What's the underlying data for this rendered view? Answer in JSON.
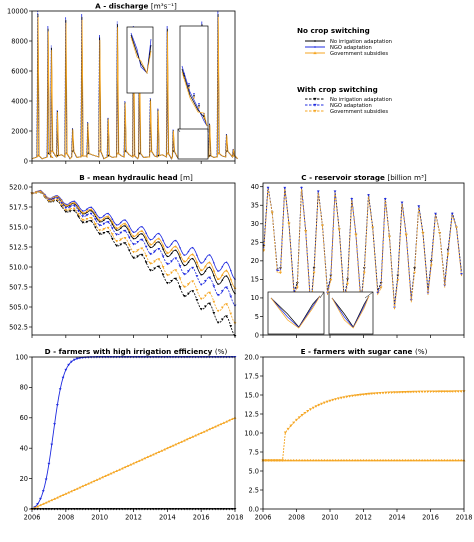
{
  "colors": {
    "no_adaptation": "#000000",
    "ngo_adaptation": "#1f2be0",
    "government_subsidies": "#f5a623"
  },
  "legend_panel": {
    "groups": [
      {
        "title": "No crop switching",
        "entries": [
          {
            "label": "No irrigation adaptation",
            "color": "#000000",
            "line": "solid",
            "marker": "dot"
          },
          {
            "label": "NGO adaptation",
            "color": "#1f2be0",
            "line": "solid",
            "marker": "dot"
          },
          {
            "label": "Government subsidies",
            "color": "#f5a623",
            "line": "solid",
            "marker": "triangle"
          }
        ]
      },
      {
        "title": "With crop switching",
        "entries": [
          {
            "label": "No irrigation adaptation",
            "color": "#000000",
            "line": "dashed",
            "marker": "triangle-down"
          },
          {
            "label": "NGO adaptation",
            "color": "#1f2be0",
            "line": "dashed",
            "marker": "triangle-down"
          },
          {
            "label": "Government subsidies",
            "color": "#f5a623",
            "line": "dashed",
            "marker": "triangle-down"
          }
        ]
      }
    ]
  },
  "chart_data": [
    {
      "id": "A",
      "type": "line",
      "title": "A - discharge",
      "title_unit": "[m³s⁻¹]",
      "x_range": [
        2006,
        2018
      ],
      "ylim": [
        0,
        10000
      ],
      "yticks": [
        0,
        2000,
        4000,
        6000,
        8000,
        10000
      ],
      "xticks": [],
      "grid": false,
      "baseline_value": 150,
      "peaks": [
        {
          "x": 2006.35,
          "y": 10000
        },
        {
          "x": 2006.95,
          "y": 9000
        },
        {
          "x": 2007.15,
          "y": 7700
        },
        {
          "x": 2007.5,
          "y": 3400
        },
        {
          "x": 2008.0,
          "y": 9600
        },
        {
          "x": 2008.4,
          "y": 2200
        },
        {
          "x": 2008.95,
          "y": 9800
        },
        {
          "x": 2009.3,
          "y": 2600
        },
        {
          "x": 2010.0,
          "y": 8400
        },
        {
          "x": 2010.5,
          "y": 2900
        },
        {
          "x": 2011.05,
          "y": 9300
        },
        {
          "x": 2011.5,
          "y": 4000
        },
        {
          "x": 2012.0,
          "y": 9000
        },
        {
          "x": 2012.35,
          "y": 7400
        },
        {
          "x": 2013.0,
          "y": 4200
        },
        {
          "x": 2013.45,
          "y": 3500
        },
        {
          "x": 2014.0,
          "y": 9000
        },
        {
          "x": 2014.35,
          "y": 2100
        },
        {
          "x": 2015.0,
          "y": 6800
        },
        {
          "x": 2015.6,
          "y": 2600
        },
        {
          "x": 2016.05,
          "y": 9300
        },
        {
          "x": 2016.5,
          "y": 2500
        },
        {
          "x": 2017.0,
          "y": 10000
        },
        {
          "x": 2017.5,
          "y": 1800
        },
        {
          "x": 2017.9,
          "y": 800
        }
      ]
    },
    {
      "id": "B",
      "type": "line",
      "title": "B - mean hydraulic head",
      "title_unit": "[m]",
      "x_range": [
        2006,
        2018
      ],
      "ylim": [
        501.5,
        520.5
      ],
      "yticks": [
        502.5,
        505.0,
        507.5,
        510.0,
        512.5,
        515.0,
        517.5,
        520.0
      ],
      "xticks": [],
      "grid": false,
      "series": [
        {
          "name": "No irrigation adaptation",
          "scenario": "no_switch",
          "color": "#000000",
          "dashed": false,
          "start": 519.5,
          "end": 507.5
        },
        {
          "name": "NGO adaptation",
          "scenario": "no_switch",
          "color": "#1f2be0",
          "dashed": false,
          "start": 519.5,
          "end": 509.3
        },
        {
          "name": "Government subsidies",
          "scenario": "no_switch",
          "color": "#f5a623",
          "dashed": false,
          "start": 519.5,
          "end": 508.2
        },
        {
          "name": "No irrigation adaptation",
          "scenario": "switch",
          "color": "#000000",
          "dashed": true,
          "start": 519.5,
          "end": 502.2
        },
        {
          "name": "NGO adaptation",
          "scenario": "switch",
          "color": "#1f2be0",
          "dashed": true,
          "start": 519.5,
          "end": 506.0
        },
        {
          "name": "Government subsidies",
          "scenario": "switch",
          "color": "#f5a623",
          "dashed": true,
          "start": 519.5,
          "end": 503.8
        }
      ]
    },
    {
      "id": "C",
      "type": "line",
      "title": "C - reservoir storage",
      "title_unit": "[billion m³]",
      "x_range": [
        2006,
        2018
      ],
      "ylim": [
        0,
        41
      ],
      "yticks": [
        0,
        5,
        10,
        15,
        20,
        25,
        30,
        35,
        40
      ],
      "xticks": [],
      "grid": false,
      "annual_cycle": [
        {
          "year": 2006,
          "max": 40,
          "min": 18
        },
        {
          "year": 2007,
          "max": 40,
          "min": 12
        },
        {
          "year": 2008,
          "max": 40,
          "min": 8
        },
        {
          "year": 2009,
          "max": 39,
          "min": 12
        },
        {
          "year": 2010,
          "max": 39,
          "min": 10
        },
        {
          "year": 2011,
          "max": 37,
          "min": 9
        },
        {
          "year": 2012,
          "max": 38,
          "min": 12
        },
        {
          "year": 2013,
          "max": 37,
          "min": 8
        },
        {
          "year": 2014,
          "max": 36,
          "min": 10
        },
        {
          "year": 2015,
          "max": 35,
          "min": 12
        },
        {
          "year": 2016,
          "max": 33,
          "min": 14
        },
        {
          "year": 2017,
          "max": 33,
          "min": 17
        }
      ]
    },
    {
      "id": "D",
      "type": "line",
      "title": "D - farmers with high irrigation efficiency",
      "title_unit": "(%)",
      "x_range": [
        2006,
        2018
      ],
      "ylim": [
        0,
        100
      ],
      "yticks": [
        0,
        20,
        40,
        60,
        80,
        100
      ],
      "xticks": [
        "2006",
        "2008",
        "2010",
        "2012",
        "2014",
        "2016",
        "2018"
      ],
      "grid": false,
      "series": [
        {
          "name": "NGO adaptation",
          "color": "#1f2be0",
          "shape": "logistic",
          "mid": 2007.25,
          "rate": 3.2,
          "max": 100
        },
        {
          "name": "Government subsidies",
          "color": "#f5a623",
          "shape": "linear",
          "start": 0,
          "end": 60
        },
        {
          "name": "No irrigation adaptation",
          "color": "#000000",
          "shape": "constant",
          "value": 0
        }
      ]
    },
    {
      "id": "E",
      "type": "line",
      "title": "E - farmers with sugar cane",
      "title_unit": "(%)",
      "x_range": [
        2006,
        2018
      ],
      "ylim": [
        0,
        20
      ],
      "yticks": [
        0.0,
        2.5,
        5.0,
        7.5,
        10.0,
        12.5,
        15.0,
        17.5,
        20.0
      ],
      "xticks": [
        "2006",
        "2008",
        "2010",
        "2012",
        "2014",
        "2016",
        "2018"
      ],
      "grid": false,
      "series": [
        {
          "name": "No crop switching",
          "color": "#f5a623",
          "shape": "constant",
          "value": 6.4
        },
        {
          "name": "With crop switching",
          "color": "#f5a623",
          "shape": "saturating",
          "start": 6.4,
          "max": 15.5,
          "rate": 0.55,
          "t0": 2006.4
        }
      ]
    }
  ]
}
